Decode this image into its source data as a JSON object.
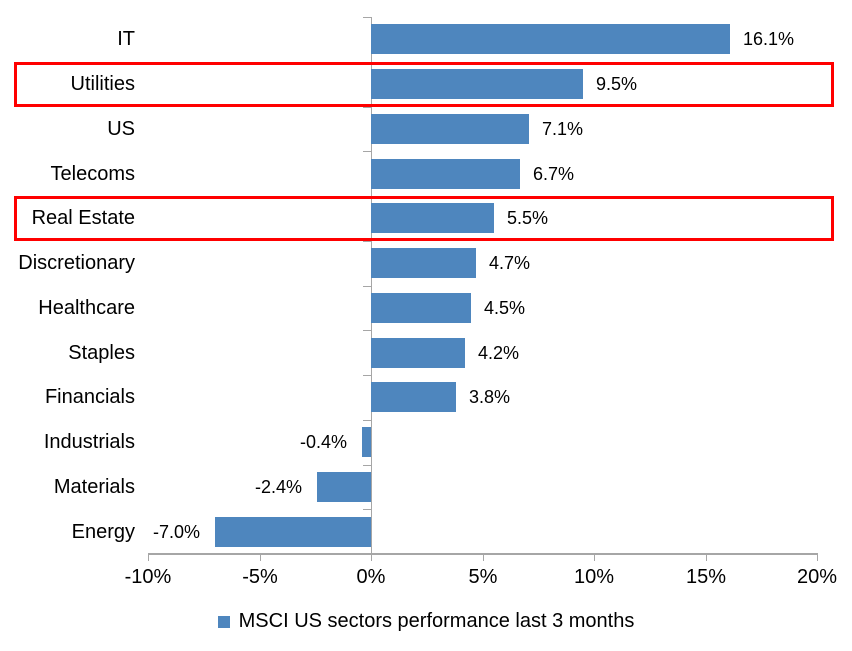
{
  "chart_data": {
    "type": "bar",
    "orientation": "horizontal",
    "categories": [
      "IT",
      "Utilities",
      "US",
      "Telecoms",
      "Real Estate",
      "Discretionary",
      "Healthcare",
      "Staples",
      "Financials",
      "Industrials",
      "Materials",
      "Energy"
    ],
    "values": [
      16.1,
      9.5,
      7.1,
      6.7,
      5.5,
      4.7,
      4.5,
      4.2,
      3.8,
      -0.4,
      -2.4,
      -7.0
    ],
    "value_labels": [
      "16.1%",
      "9.5%",
      "7.1%",
      "6.7%",
      "5.5%",
      "4.7%",
      "4.5%",
      "4.2%",
      "3.8%",
      "-0.4%",
      "-2.4%",
      "-7.0%"
    ],
    "xlim": [
      -10,
      20
    ],
    "x_ticks": [
      -10,
      -5,
      0,
      5,
      10,
      15,
      20
    ],
    "x_tick_labels": [
      "-10%",
      "-5%",
      "0%",
      "5%",
      "10%",
      "15%",
      "20%"
    ],
    "grid": false,
    "bar_color": "#4e86be",
    "axis_color": "#a6a6a6",
    "highlight_color": "#ff0000",
    "highlighted_categories": [
      "Utilities",
      "Real Estate"
    ],
    "legend": {
      "position": "bottom-center",
      "label": "MSCI US sectors performance last 3 months",
      "marker_color": "#4e86be"
    }
  }
}
